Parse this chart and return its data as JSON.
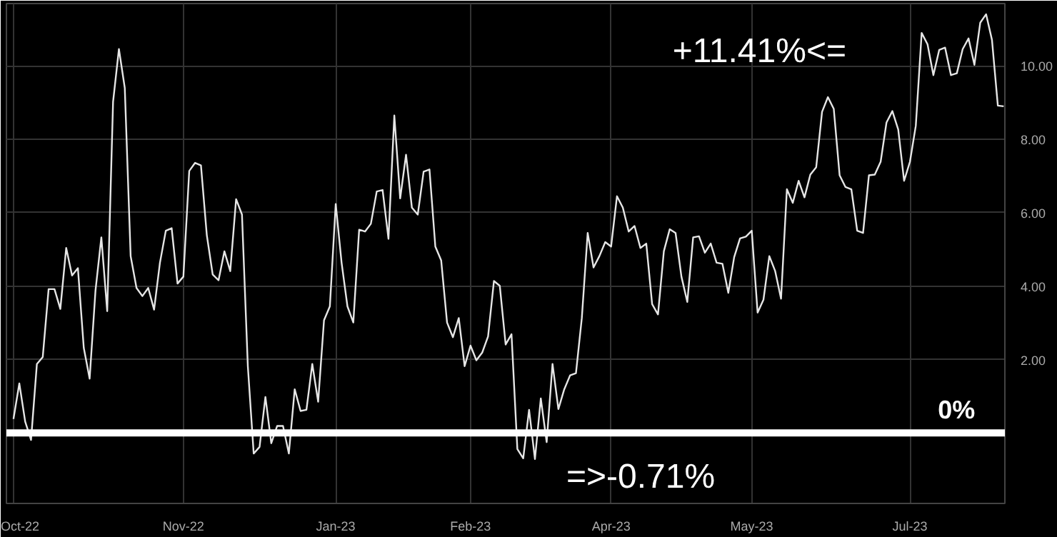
{
  "chart_data": {
    "type": "line",
    "categories": [
      "Oct-22",
      null,
      null,
      null,
      null,
      null,
      null,
      null,
      null,
      null,
      null,
      null,
      null,
      null,
      null,
      null,
      null,
      null,
      null,
      null,
      null,
      null,
      null,
      null,
      null,
      null,
      null,
      null,
      null,
      "Nov-22",
      null,
      null,
      null,
      null,
      null,
      null,
      null,
      null,
      null,
      null,
      null,
      null,
      null,
      null,
      null,
      null,
      null,
      null,
      null,
      null,
      null,
      null,
      null,
      null,
      null,
      "Jan-23",
      null,
      null,
      null,
      null,
      null,
      null,
      null,
      null,
      null,
      null,
      null,
      null,
      null,
      null,
      null,
      null,
      null,
      null,
      null,
      null,
      null,
      null,
      "Feb-23",
      null,
      null,
      null,
      null,
      null,
      null,
      null,
      null,
      null,
      null,
      null,
      null,
      null,
      null,
      null,
      null,
      null,
      null,
      null,
      null,
      null,
      null,
      null,
      "Apr-23",
      null,
      null,
      null,
      null,
      null,
      null,
      null,
      null,
      null,
      null,
      null,
      null,
      null,
      null,
      null,
      null,
      null,
      null,
      null,
      null,
      null,
      null,
      null,
      "May-23",
      null,
      null,
      null,
      null,
      null,
      null,
      null,
      null,
      null,
      null,
      null,
      null,
      null,
      null,
      null,
      null,
      null,
      null,
      null,
      null,
      null,
      null,
      null,
      null,
      null,
      null,
      "Jul-23",
      null,
      null,
      null,
      null,
      null,
      null,
      null,
      null,
      null,
      null,
      null,
      null,
      null,
      null,
      null,
      null
    ],
    "series": [
      {
        "color": "#e6e6e6",
        "values": [
          0.38,
          1.35,
          0.31,
          -0.19,
          1.88,
          2.07,
          3.92,
          3.92,
          3.38,
          5.04,
          4.29,
          4.49,
          2.32,
          1.48,
          3.88,
          5.33,
          3.32,
          9.02,
          10.46,
          9.4,
          4.82,
          3.95,
          3.73,
          3.95,
          3.36,
          4.64,
          5.51,
          5.58,
          4.07,
          4.26,
          7.14,
          7.36,
          7.29,
          5.39,
          4.32,
          4.16,
          4.95,
          4.41,
          6.37,
          5.95,
          1.82,
          -0.56,
          -0.38,
          0.98,
          -0.28,
          0.19,
          0.19,
          -0.56,
          1.19,
          0.6,
          0.63,
          1.88,
          0.85,
          3.07,
          3.45,
          6.24,
          4.64,
          3.45,
          3.01,
          5.54,
          5.49,
          5.7,
          6.58,
          6.62,
          5.29,
          8.65,
          6.39,
          7.58,
          6.14,
          5.95,
          7.12,
          7.18,
          5.08,
          4.7,
          3.01,
          2.61,
          3.13,
          1.82,
          2.38,
          1.98,
          2.19,
          2.63,
          4.14,
          4.01,
          2.41,
          2.69,
          -0.44,
          -0.69,
          0.63,
          -0.71,
          0.94,
          -0.25,
          1.88,
          0.65,
          1.19,
          1.57,
          1.63,
          3.13,
          5.45,
          4.51,
          4.82,
          5.2,
          5.08,
          6.45,
          6.14,
          5.49,
          5.64,
          5.04,
          5.16,
          3.51,
          3.23,
          4.95,
          5.55,
          5.45,
          4.26,
          3.57,
          5.33,
          5.36,
          4.91,
          5.16,
          4.64,
          4.61,
          3.82,
          4.79,
          5.3,
          5.35,
          5.51,
          3.28,
          3.63,
          4.82,
          4.41,
          3.66,
          6.64,
          6.27,
          6.87,
          6.42,
          7.04,
          7.24,
          8.75,
          9.15,
          8.83,
          7.02,
          6.7,
          6.64,
          5.51,
          5.45,
          7.02,
          7.04,
          7.39,
          8.46,
          8.77,
          8.27,
          6.87,
          7.39,
          8.37,
          10.9,
          10.59,
          9.75,
          10.44,
          10.5,
          9.75,
          9.8,
          10.46,
          10.75,
          10.03,
          11.18,
          11.41,
          10.71,
          8.92,
          8.9
        ]
      }
    ],
    "ylim": [
      -1.92,
      11.7
    ],
    "yticks": [
      {
        "value": 0,
        "label": null
      },
      {
        "value": 2,
        "label": "2.00"
      },
      {
        "value": 4,
        "label": "4.00"
      },
      {
        "value": 6,
        "label": "6.00"
      },
      {
        "value": 8,
        "label": "8.00"
      },
      {
        "value": 10,
        "label": "10.00"
      }
    ],
    "grid": true,
    "line_style": "solid",
    "ref_lines": [
      {
        "axis": "y",
        "value": 0,
        "label": "0%",
        "color": "#ffffff"
      }
    ],
    "annotations": [
      "+11.41%<=",
      "=>-0.71%"
    ]
  }
}
